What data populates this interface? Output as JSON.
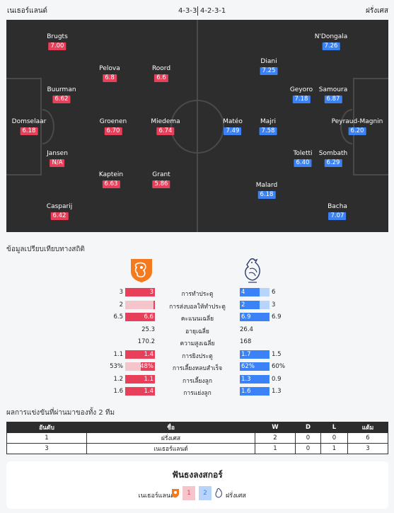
{
  "header": {
    "home_team": "เนเธอร์แลนด์",
    "away_team": "ฝรั่งเศส",
    "home_formation": "4-3-3",
    "away_formation": "4-2-3-1"
  },
  "lineup": {
    "home": [
      {
        "name": "Brugts",
        "rating": "7.00"
      },
      {
        "name": "Pelova",
        "rating": "6.8"
      },
      {
        "name": "Roord",
        "rating": "6.6"
      },
      {
        "name": "Buurman",
        "rating": "6.62"
      },
      {
        "name": "Domselaar",
        "rating": "6.18"
      },
      {
        "name": "Groenen",
        "rating": "6.70"
      },
      {
        "name": "Miedema",
        "rating": "6.74"
      },
      {
        "name": "Jansen",
        "rating": "N/A"
      },
      {
        "name": "Kaptein",
        "rating": "6.63"
      },
      {
        "name": "Grant",
        "rating": "5.86"
      },
      {
        "name": "Casparij",
        "rating": "6.42"
      }
    ],
    "away": [
      {
        "name": "N'Dongala",
        "rating": "7.26"
      },
      {
        "name": "Diani",
        "rating": "7.25"
      },
      {
        "name": "Geyoro",
        "rating": "7.18"
      },
      {
        "name": "Samoura",
        "rating": "6.87"
      },
      {
        "name": "Matéo",
        "rating": "7.49"
      },
      {
        "name": "Majri",
        "rating": "7.58"
      },
      {
        "name": "Peyraud-Magnin",
        "rating": "6.20"
      },
      {
        "name": "Toletti",
        "rating": "6.40"
      },
      {
        "name": "Sombath",
        "rating": "6.29"
      },
      {
        "name": "Malard",
        "rating": "6.18"
      },
      {
        "name": "Bacha",
        "rating": "7.07"
      }
    ]
  },
  "stats": {
    "title": "ข้อมูลเปรียบเทียบทางสถิติ",
    "home_crest": "netherlands-lion-crest-icon",
    "away_crest": "france-rooster-crest-icon",
    "rows": [
      {
        "label": "การทำประตู",
        "home": "3",
        "away": "6",
        "home_bar": "3",
        "away_bar": "4",
        "home_share": 1.0,
        "away_share": 0.67
      },
      {
        "label": "การส่งบอลให้ทำประตู",
        "home": "2",
        "away": "3",
        "home_bar": "",
        "away_bar": "2",
        "home_share": 0.05,
        "away_share": 0.67
      },
      {
        "label": "คะแนนเฉลี่ย",
        "home": "6.5",
        "away": "6.9",
        "home_bar": "6.6",
        "away_bar": "6.9",
        "home_share": 1.0,
        "away_share": 1.0
      },
      {
        "label": "อายุเฉลี่ย",
        "home": "25.3",
        "away": "26.4"
      },
      {
        "label": "ความสูงเฉลี่ย",
        "home": "170.2",
        "away": "168"
      },
      {
        "label": "การยิงประตู",
        "home": "1.1",
        "away": "1.5",
        "home_bar": "1.4",
        "away_bar": "1.7",
        "home_share": 1.0,
        "away_share": 1.0
      },
      {
        "label": "การเลี้ยงหลบสำเร็จ",
        "home": "53%",
        "away": "60%",
        "home_bar": "48%",
        "away_bar": "62%",
        "home_share": 0.48,
        "away_share": 1.0
      },
      {
        "label": "การเลี้ยงลูก",
        "home": "1.2",
        "away": "0.9",
        "home_bar": "1.1",
        "away_bar": "1.3",
        "home_share": 1.0,
        "away_share": 1.0
      },
      {
        "label": "การแย่งลูก",
        "home": "1.6",
        "away": "1.3",
        "home_bar": "1.4",
        "away_bar": "1.6",
        "home_share": 1.0,
        "away_share": 1.0
      }
    ]
  },
  "results": {
    "title": "ผลการแข่งขันที่ผ่านมาของทั้ง 2 ทีม",
    "columns": [
      "อันดับ",
      "ชื่อ",
      "W",
      "D",
      "L",
      "แต้ม"
    ],
    "rows": [
      [
        "1",
        "ฝรั่งเศส",
        "2",
        "0",
        "0",
        "6"
      ],
      [
        "3",
        "เนเธอร์แลนด์",
        "1",
        "0",
        "1",
        "3"
      ]
    ]
  },
  "prediction": {
    "title": "ฟันธงลงสกอร์",
    "home_team": "เนเธอร์แลนด์",
    "away_team": "ฝรั่งเศส",
    "home_votes": "1",
    "away_votes": "2"
  },
  "colors": {
    "home": "#e8405a",
    "home_light": "#f6c4cb",
    "away": "#3b82f6",
    "away_light": "#b8d4fb",
    "pitch": "#2d2d2d"
  }
}
